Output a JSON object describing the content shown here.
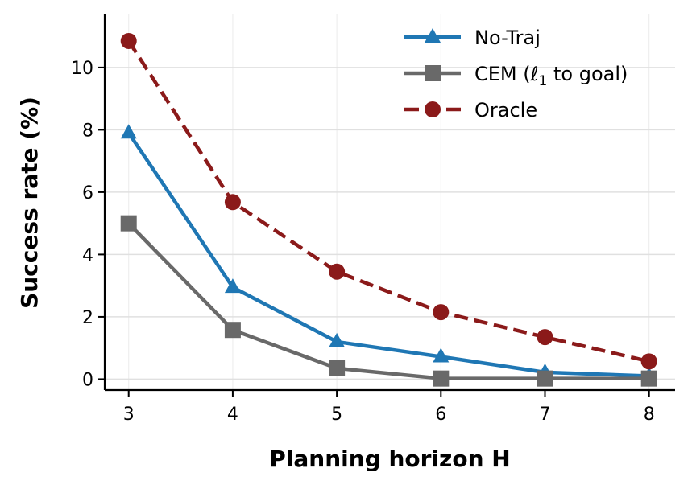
{
  "chart_data": {
    "type": "line",
    "xlabel": "Planning horizon H",
    "ylabel": "Success rate (%)",
    "x": [
      3,
      4,
      5,
      6,
      7,
      8
    ],
    "xticks": [
      "3",
      "4",
      "5",
      "6",
      "7",
      "8"
    ],
    "yticks": [
      "0",
      "2",
      "4",
      "6",
      "8",
      "10"
    ],
    "xlim": [
      2.77,
      8.25
    ],
    "ylim": [
      -0.35,
      11.7
    ],
    "grid": true,
    "legend_position": "top-right",
    "series": [
      {
        "name": "No-Traj",
        "values": [
          7.9,
          2.95,
          1.2,
          0.72,
          0.22,
          0.1
        ],
        "color": "#1f77b4",
        "marker": "triangle",
        "line_style": "solid"
      },
      {
        "name": "CEM (ℓ1 to goal)",
        "name_main": "CEM (ℓ",
        "name_sub": "1",
        "name_tail": " to goal)",
        "values": [
          5.0,
          1.58,
          0.35,
          0.02,
          0.02,
          0.02
        ],
        "color": "#696969",
        "marker": "square",
        "line_style": "solid"
      },
      {
        "name": "Oracle",
        "values": [
          10.85,
          5.68,
          3.45,
          2.15,
          1.35,
          0.57
        ],
        "color": "#8b1a1a",
        "marker": "circle",
        "line_style": "dashed"
      }
    ]
  }
}
